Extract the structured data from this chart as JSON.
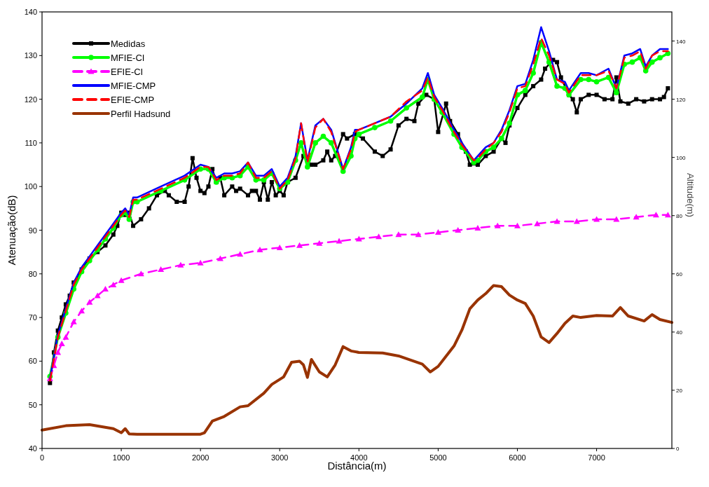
{
  "chart_data": {
    "type": "line",
    "xlabel": "Distância(m)",
    "ylabel": "Atenuação(dB)",
    "y2label": "Altitude(m)",
    "xlim": [
      0,
      7950
    ],
    "xticks": [
      0,
      1000,
      2000,
      3000,
      4000,
      5000,
      6000,
      7000
    ],
    "ylim": [
      40,
      140
    ],
    "yticks": [
      40,
      50,
      60,
      70,
      80,
      90,
      100,
      110,
      120,
      130,
      140
    ],
    "y2lim": [
      0,
      150
    ],
    "y2ticks": [
      0,
      20,
      40,
      60,
      80,
      100,
      120,
      140
    ],
    "grid": false,
    "legend": "top left",
    "series": [
      {
        "name": "Medidas",
        "color": "#000000",
        "marker": "square",
        "line_style": "solid",
        "x": [
          100,
          150,
          200,
          250,
          300,
          350,
          400,
          500,
          600,
          700,
          800,
          900,
          950,
          1000,
          1050,
          1100,
          1150,
          1250,
          1350,
          1450,
          1550,
          1600,
          1700,
          1800,
          1850,
          1900,
          1950,
          2000,
          2050,
          2100,
          2150,
          2200,
          2250,
          2300,
          2400,
          2450,
          2500,
          2600,
          2650,
          2700,
          2750,
          2800,
          2850,
          2900,
          2950,
          3000,
          3050,
          3100,
          3200,
          3300,
          3400,
          3450,
          3550,
          3600,
          3650,
          3700,
          3800,
          3850,
          3950,
          4050,
          4200,
          4300,
          4400,
          4500,
          4600,
          4700,
          4750,
          4850,
          4950,
          5000,
          5100,
          5150,
          5250,
          5350,
          5400,
          5500,
          5600,
          5700,
          5800,
          5850,
          5900,
          6000,
          6100,
          6200,
          6300,
          6350,
          6450,
          6500,
          6550,
          6650,
          6700,
          6750,
          6800,
          6900,
          7000,
          7100,
          7200,
          7250,
          7300,
          7400,
          7500,
          7600,
          7700,
          7800,
          7850,
          7900
        ],
        "values": [
          55,
          62,
          67,
          70,
          73,
          75,
          78,
          81,
          83.5,
          85,
          86.5,
          89,
          91,
          94,
          93.5,
          94,
          91,
          92.5,
          95,
          98,
          99,
          98,
          96.5,
          96.5,
          100,
          106.5,
          102,
          99,
          98.5,
          100,
          104,
          101,
          102,
          98,
          100,
          99,
          99.5,
          98,
          99,
          99,
          97,
          101,
          97,
          101,
          98,
          99,
          98,
          101,
          102,
          107,
          105,
          105,
          106,
          108,
          106,
          107,
          112,
          111,
          112,
          111,
          108,
          107,
          108.5,
          114,
          115.5,
          115,
          119,
          121,
          120,
          112.5,
          119,
          115,
          112,
          108,
          105,
          105,
          107,
          108,
          111,
          110,
          114,
          118,
          121,
          123,
          124.5,
          127,
          129,
          128.5,
          125,
          121,
          120,
          117,
          120,
          121,
          121,
          120,
          120,
          125,
          119.5,
          119,
          120,
          119.5,
          120,
          120,
          120.5,
          122.5
        ]
      },
      {
        "name": "MFIE-CI",
        "color": "#00ff00",
        "marker": "circle",
        "line_style": "solid",
        "x": [
          100,
          200,
          300,
          400,
          500,
          600,
          700,
          800,
          900,
          1000,
          1050,
          1100,
          1150,
          1200,
          1500,
          1800,
          2000,
          2100,
          2200,
          2300,
          2400,
          2500,
          2600,
          2700,
          2800,
          2900,
          3000,
          3100,
          3200,
          3270,
          3350,
          3450,
          3550,
          3650,
          3800,
          3900,
          3950,
          4000,
          4200,
          4400,
          4600,
          4800,
          4870,
          4950,
          5050,
          5200,
          5300,
          5450,
          5500,
          5600,
          5700,
          5800,
          5900,
          6000,
          6100,
          6200,
          6300,
          6400,
          6500,
          6600,
          6650,
          6800,
          6900,
          7000,
          7150,
          7250,
          7350,
          7450,
          7550,
          7620,
          7700,
          7800,
          7900
        ],
        "values": [
          56.5,
          65.5,
          71,
          76.5,
          80.5,
          83,
          85.5,
          88,
          90.5,
          93.5,
          94,
          92.5,
          96.5,
          96.5,
          99,
          101.5,
          104,
          104,
          101,
          102,
          102,
          102.5,
          104.5,
          101.5,
          101.5,
          103,
          99.5,
          101,
          106,
          110,
          104.5,
          110,
          111.5,
          110,
          103.5,
          107,
          111,
          112,
          113.5,
          115,
          118,
          120.5,
          124.5,
          120,
          117,
          112,
          109,
          105.5,
          106,
          108,
          109,
          111,
          114.5,
          121,
          122,
          126,
          133,
          128.5,
          123,
          122.5,
          121,
          124.5,
          124.5,
          124,
          125,
          121.5,
          128,
          128.5,
          129.5,
          126.5,
          128.5,
          129.5,
          130.5
        ]
      },
      {
        "name": "EFIE-CI",
        "color": "#ff00ff",
        "marker": "triangle",
        "line_style": "dashed",
        "x": [
          100,
          150,
          200,
          250,
          300,
          400,
          500,
          600,
          700,
          800,
          900,
          1000,
          1250,
          1500,
          1750,
          2000,
          2250,
          2500,
          2750,
          3000,
          3250,
          3500,
          3750,
          4000,
          4250,
          4500,
          4750,
          5000,
          5250,
          5500,
          5750,
          6000,
          6250,
          6500,
          6750,
          7000,
          7250,
          7500,
          7750,
          7900
        ],
        "values": [
          56,
          59,
          62,
          64,
          65.5,
          69,
          71.5,
          73.5,
          75,
          76.5,
          77.5,
          78.5,
          80,
          81,
          82,
          82.5,
          83.5,
          84.5,
          85.5,
          86,
          86.5,
          87,
          87.5,
          88,
          88.5,
          89,
          89,
          89.5,
          90,
          90.5,
          91,
          91,
          91.5,
          92,
          92,
          92.5,
          92.5,
          93,
          93.5,
          93.5
        ]
      },
      {
        "name": "MFIE-CMP",
        "color": "#0000ff",
        "marker": "none",
        "line_style": "solid",
        "x": [
          100,
          200,
          300,
          400,
          500,
          600,
          700,
          800,
          900,
          1000,
          1050,
          1100,
          1150,
          1200,
          1500,
          1800,
          2000,
          2100,
          2200,
          2300,
          2400,
          2500,
          2600,
          2700,
          2800,
          2900,
          3000,
          3100,
          3200,
          3270,
          3350,
          3450,
          3550,
          3650,
          3800,
          3900,
          3950,
          4000,
          4200,
          4400,
          4600,
          4800,
          4870,
          4950,
          5050,
          5200,
          5300,
          5450,
          5500,
          5600,
          5700,
          5800,
          5900,
          6000,
          6100,
          6200,
          6300,
          6400,
          6500,
          6600,
          6650,
          6800,
          6900,
          7000,
          7150,
          7250,
          7350,
          7450,
          7550,
          7620,
          7700,
          7800,
          7900
        ],
        "values": [
          56,
          66,
          72,
          78,
          81.5,
          84,
          86.5,
          89,
          91.5,
          94,
          95,
          93.5,
          97.5,
          97.5,
          100,
          102.5,
          105,
          104.5,
          102,
          103,
          103,
          103.5,
          105.5,
          102.5,
          102.5,
          104,
          100,
          102,
          107,
          114.5,
          106,
          114,
          115.5,
          113,
          104,
          109,
          113,
          113,
          114.5,
          116,
          119,
          122.5,
          126,
          121,
          118,
          113,
          110,
          106,
          107,
          109,
          110,
          113,
          117.5,
          123,
          123.5,
          129,
          136.5,
          131,
          124.5,
          124,
          122,
          126,
          126,
          125.5,
          127,
          122.5,
          130,
          130.5,
          131.5,
          127.5,
          130,
          131.5,
          131.5
        ]
      },
      {
        "name": "EFIE-CMP",
        "color": "#ff0000",
        "marker": "none",
        "line_style": "dashed",
        "x": [
          100,
          200,
          300,
          400,
          500,
          600,
          700,
          800,
          900,
          1000,
          1050,
          1100,
          1150,
          1200,
          1500,
          1800,
          2000,
          2100,
          2200,
          2300,
          2400,
          2500,
          2600,
          2700,
          2800,
          2900,
          3000,
          3100,
          3200,
          3270,
          3350,
          3450,
          3550,
          3650,
          3800,
          3900,
          3950,
          4000,
          4200,
          4400,
          4600,
          4800,
          4870,
          4950,
          5050,
          5200,
          5300,
          5450,
          5500,
          5600,
          5700,
          5800,
          5900,
          6000,
          6100,
          6200,
          6300,
          6400,
          6500,
          6600,
          6650,
          6800,
          6900,
          7000,
          7150,
          7250,
          7350,
          7450,
          7550,
          7620,
          7700,
          7800,
          7900
        ],
        "values": [
          55.5,
          65.5,
          71.5,
          77.5,
          81,
          83.5,
          86,
          88.5,
          91,
          93.5,
          94.5,
          93,
          97,
          97,
          99.5,
          102,
          104.5,
          104.5,
          101.5,
          102.5,
          102.5,
          103,
          105.5,
          102,
          102,
          103.5,
          99.5,
          101.5,
          106.5,
          114.5,
          105.5,
          113.5,
          115.5,
          112.5,
          104,
          108.5,
          112.5,
          113,
          114.5,
          116,
          119.5,
          122,
          125,
          120.5,
          117.5,
          112.5,
          109.5,
          106,
          106.5,
          108.5,
          110,
          112.5,
          117,
          122.5,
          123,
          128,
          134,
          130,
          124.5,
          123.5,
          121.5,
          125.5,
          125.5,
          125.5,
          126.5,
          122.5,
          129.5,
          130,
          131,
          127,
          130,
          131,
          131
        ]
      },
      {
        "name": "Perfil Hadsund",
        "color": "#993300",
        "marker": "none",
        "line_style": "solid",
        "axis": "y2",
        "x": [
          0,
          300,
          600,
          900,
          1000,
          1050,
          1100,
          1200,
          2000,
          2050,
          2150,
          2300,
          2500,
          2600,
          2800,
          2900,
          3050,
          3150,
          3250,
          3300,
          3350,
          3400,
          3500,
          3600,
          3700,
          3800,
          3900,
          4000,
          4300,
          4500,
          4800,
          4900,
          5000,
          5200,
          5300,
          5400,
          5500,
          5600,
          5700,
          5800,
          5900,
          6000,
          6100,
          6200,
          6300,
          6400,
          6500,
          6600,
          6700,
          6800,
          7000,
          7200,
          7300,
          7400,
          7600,
          7700,
          7800,
          7950
        ],
        "values": [
          6.3,
          7.8,
          8.2,
          6.8,
          5.4,
          6.8,
          5,
          4.9,
          4.9,
          5.4,
          9.4,
          11,
          14.3,
          14.7,
          19,
          22,
          24.6,
          29.6,
          30,
          28.7,
          24.4,
          30.6,
          26.3,
          24.6,
          28.7,
          35,
          33.5,
          33,
          32.8,
          31.8,
          29,
          26.3,
          28.2,
          35.2,
          40.7,
          48,
          51,
          53.2,
          56,
          55.6,
          52.7,
          51,
          49.8,
          45.5,
          38.3,
          36.4,
          39.5,
          43,
          45.5,
          45,
          45.7,
          45.5,
          48.4,
          45.5,
          43.8,
          46,
          44.3,
          43.3
        ]
      }
    ]
  }
}
